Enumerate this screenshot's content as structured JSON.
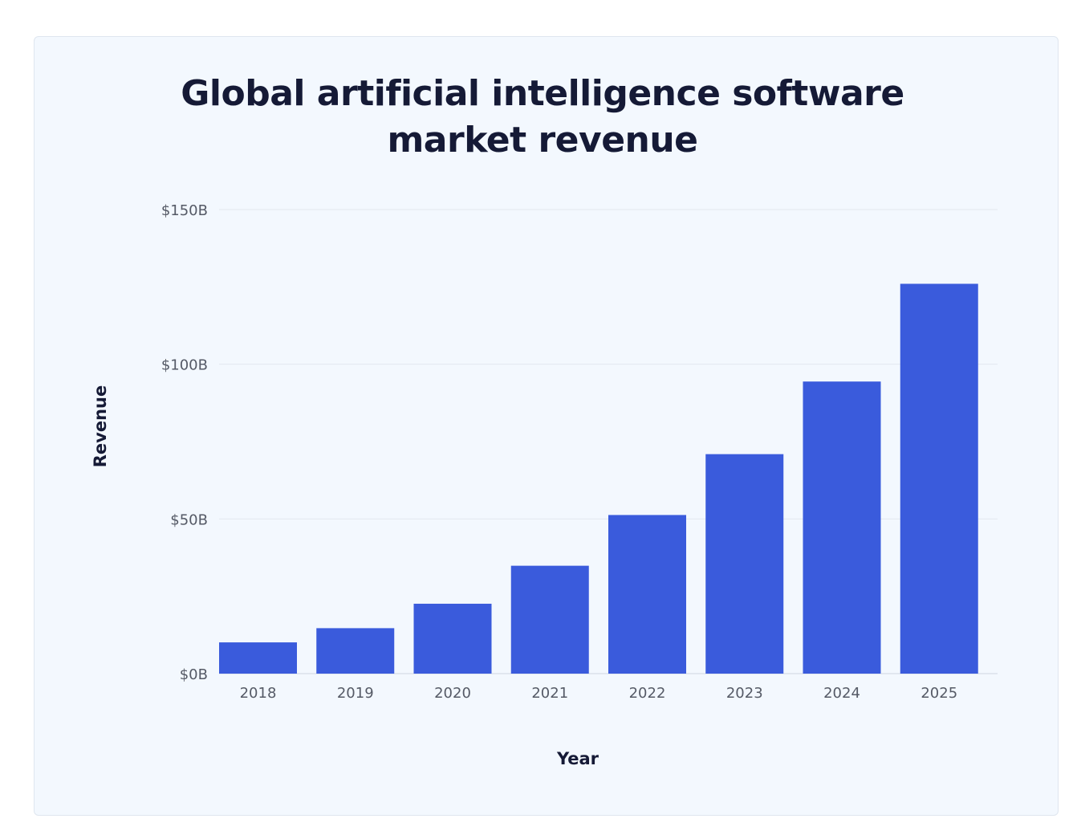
{
  "chart_data": {
    "type": "bar",
    "title": "Global artificial intelligence software market revenue",
    "title_lines": [
      "Global artificial intelligence software",
      "market revenue"
    ],
    "xlabel": "Year",
    "ylabel": "Revenue",
    "categories": [
      "2018",
      "2019",
      "2020",
      "2021",
      "2022",
      "2023",
      "2024",
      "2025"
    ],
    "values": [
      10.1,
      14.69,
      22.59,
      34.87,
      51.27,
      70.94,
      94.41,
      126.0
    ],
    "unit": "billion USD",
    "ylim": [
      0,
      150
    ],
    "yticks": [
      0,
      50,
      100,
      150
    ],
    "ytick_labels": [
      "$0B",
      "$50B",
      "$100B",
      "$150B"
    ],
    "grid": true,
    "legend": "none",
    "colors": {
      "bar": "#3a5bdc",
      "background": "#f3f8fe",
      "title": "#151a36"
    }
  }
}
